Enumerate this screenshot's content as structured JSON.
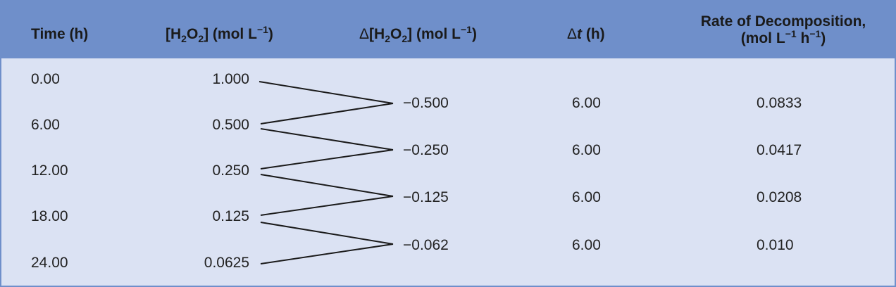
{
  "header": {
    "time": "Time (h)",
    "conc_open": "[H",
    "conc_sub": "2",
    "conc_o": "O",
    "conc_sub2": "2",
    "conc_unit": "] (mol L",
    "conc_sup": "−1",
    "conc_close": ")",
    "delta_symbol": "Δ",
    "delta_open": "[H",
    "delta_sub": "2",
    "delta_o": "O",
    "delta_sub2": "2",
    "delta_unit": "] (mol L",
    "delta_sup": "−1",
    "delta_close": ")",
    "dt_symbol": "Δ",
    "dt_var": "t",
    "dt_unit": " (h)",
    "rate_line1": "Rate of Decomposition,",
    "rate_line2_a": "(mol L",
    "rate_line2_sup1": "−1",
    "rate_line2_b": " h",
    "rate_line2_sup2": "−1",
    "rate_line2_c": ")"
  },
  "rows": [
    {
      "time": "0.00",
      "conc": "1.000"
    },
    {
      "time": "6.00",
      "conc": "0.500"
    },
    {
      "time": "12.00",
      "conc": "0.250"
    },
    {
      "time": "18.00",
      "conc": "0.125"
    },
    {
      "time": "24.00",
      "conc": "0.0625"
    }
  ],
  "intervals": [
    {
      "delta": "−0.500",
      "dt": "6.00",
      "rate": "0.0833"
    },
    {
      "delta": "−0.250",
      "dt": "6.00",
      "rate": "0.0417"
    },
    {
      "delta": "−0.125",
      "dt": "6.00",
      "rate": "0.0208"
    },
    {
      "delta": "−0.062",
      "dt": "6.00",
      "rate": "0.010"
    }
  ],
  "colors": {
    "header_bg": "#6f8fca",
    "body_bg": "#dbe2f3",
    "line": "#1a1a1a"
  }
}
